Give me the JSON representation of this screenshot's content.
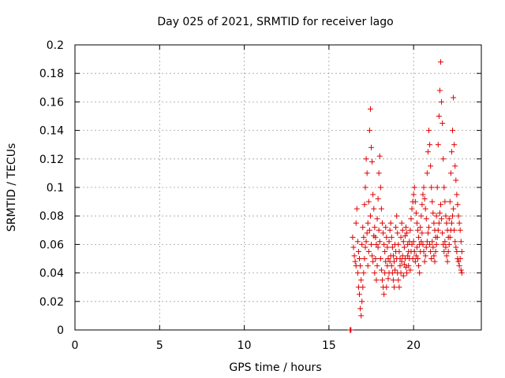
{
  "chart_data": {
    "type": "scatter",
    "title": "Day 025 of 2021, SRMTID for receiver lago",
    "xlabel": "GPS time / hours",
    "ylabel": "SRMTID / TECUs",
    "xlim": [
      0,
      24
    ],
    "ylim": [
      0,
      0.2
    ],
    "xticks": [
      0,
      5,
      10,
      15,
      20
    ],
    "xtick_labels": [
      "0",
      "5",
      "10",
      "15",
      "20"
    ],
    "yticks": [
      0,
      0.02,
      0.04,
      0.06,
      0.08,
      0.1,
      0.12,
      0.14,
      0.16,
      0.18,
      0.2
    ],
    "ytick_labels": [
      "0",
      "0.02",
      "0.04",
      "0.06",
      "0.08",
      "0.1",
      "0.12",
      "0.14",
      "0.16",
      "0.18",
      "0.2"
    ],
    "grid": true,
    "marker": "+",
    "color": "#e00000",
    "series": [
      {
        "name": "SRMTID",
        "points": [
          [
            16.25,
            0.0
          ],
          [
            16.27,
            0.0
          ],
          [
            16.3,
            0.0
          ],
          [
            16.4,
            0.065
          ],
          [
            16.45,
            0.058
          ],
          [
            16.5,
            0.052
          ],
          [
            16.55,
            0.048
          ],
          [
            16.6,
            0.045
          ],
          [
            16.6,
            0.075
          ],
          [
            16.65,
            0.085
          ],
          [
            16.7,
            0.04
          ],
          [
            16.7,
            0.062
          ],
          [
            16.75,
            0.03
          ],
          [
            16.75,
            0.055
          ],
          [
            16.8,
            0.025
          ],
          [
            16.8,
            0.05
          ],
          [
            16.85,
            0.015
          ],
          [
            16.85,
            0.045
          ],
          [
            16.9,
            0.01
          ],
          [
            16.9,
            0.035
          ],
          [
            16.95,
            0.02
          ],
          [
            16.95,
            0.06
          ],
          [
            17.0,
            0.03
          ],
          [
            17.0,
            0.072
          ],
          [
            17.05,
            0.04
          ],
          [
            17.05,
            0.065
          ],
          [
            17.1,
            0.05
          ],
          [
            17.1,
            0.088
          ],
          [
            17.15,
            0.1
          ],
          [
            17.15,
            0.058
          ],
          [
            17.2,
            0.12
          ],
          [
            17.2,
            0.062
          ],
          [
            17.25,
            0.11
          ],
          [
            17.25,
            0.068
          ],
          [
            17.3,
            0.075
          ],
          [
            17.3,
            0.045
          ],
          [
            17.35,
            0.09
          ],
          [
            17.35,
            0.055
          ],
          [
            17.4,
            0.14
          ],
          [
            17.4,
            0.07
          ],
          [
            17.45,
            0.155
          ],
          [
            17.45,
            0.08
          ],
          [
            17.5,
            0.128
          ],
          [
            17.5,
            0.06
          ],
          [
            17.55,
            0.118
          ],
          [
            17.55,
            0.052
          ],
          [
            17.6,
            0.095
          ],
          [
            17.6,
            0.048
          ],
          [
            17.65,
            0.085
          ],
          [
            17.65,
            0.066
          ],
          [
            17.7,
            0.072
          ],
          [
            17.7,
            0.04
          ],
          [
            17.75,
            0.065
          ],
          [
            17.75,
            0.05
          ],
          [
            17.8,
            0.06
          ],
          [
            17.8,
            0.035
          ],
          [
            17.85,
            0.078
          ],
          [
            17.85,
            0.045
          ],
          [
            17.9,
            0.092
          ],
          [
            17.9,
            0.058
          ],
          [
            17.95,
            0.11
          ],
          [
            17.95,
            0.07
          ],
          [
            18.0,
            0.122
          ],
          [
            18.0,
            0.062
          ],
          [
            18.05,
            0.1
          ],
          [
            18.05,
            0.05
          ],
          [
            18.1,
            0.085
          ],
          [
            18.1,
            0.042
          ],
          [
            18.15,
            0.075
          ],
          [
            18.15,
            0.035
          ],
          [
            18.2,
            0.068
          ],
          [
            18.2,
            0.03
          ],
          [
            18.25,
            0.06
          ],
          [
            18.25,
            0.025
          ],
          [
            18.3,
            0.055
          ],
          [
            18.3,
            0.04
          ],
          [
            18.35,
            0.072
          ],
          [
            18.35,
            0.048
          ],
          [
            18.4,
            0.065
          ],
          [
            18.4,
            0.03
          ],
          [
            18.45,
            0.058
          ],
          [
            18.45,
            0.045
          ],
          [
            18.5,
            0.05
          ],
          [
            18.5,
            0.036
          ],
          [
            18.55,
            0.062
          ],
          [
            18.55,
            0.04
          ],
          [
            18.6,
            0.07
          ],
          [
            18.6,
            0.048
          ],
          [
            18.65,
            0.075
          ],
          [
            18.65,
            0.052
          ],
          [
            18.7,
            0.065
          ],
          [
            18.7,
            0.045
          ],
          [
            18.75,
            0.058
          ],
          [
            18.75,
            0.04
          ],
          [
            18.8,
            0.052
          ],
          [
            18.8,
            0.035
          ],
          [
            18.85,
            0.048
          ],
          [
            18.85,
            0.03
          ],
          [
            18.9,
            0.06
          ],
          [
            18.9,
            0.042
          ],
          [
            18.95,
            0.072
          ],
          [
            18.95,
            0.055
          ],
          [
            19.0,
            0.08
          ],
          [
            19.0,
            0.05
          ],
          [
            19.05,
            0.068
          ],
          [
            19.05,
            0.04
          ],
          [
            19.1,
            0.06
          ],
          [
            19.1,
            0.035
          ],
          [
            19.15,
            0.055
          ],
          [
            19.15,
            0.03
          ],
          [
            19.2,
            0.05
          ],
          [
            19.2,
            0.045
          ],
          [
            19.25,
            0.065
          ],
          [
            19.25,
            0.04
          ],
          [
            19.3,
            0.075
          ],
          [
            19.3,
            0.048
          ],
          [
            19.35,
            0.07
          ],
          [
            19.35,
            0.052
          ],
          [
            19.4,
            0.062
          ],
          [
            19.4,
            0.038
          ],
          [
            19.45,
            0.058
          ],
          [
            19.45,
            0.046
          ],
          [
            19.5,
            0.066
          ],
          [
            19.5,
            0.05
          ],
          [
            19.55,
            0.072
          ],
          [
            19.55,
            0.044
          ],
          [
            19.6,
            0.068
          ],
          [
            19.6,
            0.04
          ],
          [
            19.65,
            0.06
          ],
          [
            19.65,
            0.052
          ],
          [
            19.7,
            0.055
          ],
          [
            19.7,
            0.045
          ],
          [
            19.75,
            0.062
          ],
          [
            19.75,
            0.05
          ],
          [
            19.8,
            0.07
          ],
          [
            19.8,
            0.042
          ],
          [
            19.85,
            0.078
          ],
          [
            19.85,
            0.055
          ],
          [
            19.9,
            0.085
          ],
          [
            19.9,
            0.06
          ],
          [
            19.95,
            0.09
          ],
          [
            19.95,
            0.05
          ],
          [
            20.0,
            0.095
          ],
          [
            20.0,
            0.062
          ],
          [
            20.05,
            0.1
          ],
          [
            20.05,
            0.055
          ],
          [
            20.1,
            0.09
          ],
          [
            20.1,
            0.048
          ],
          [
            20.15,
            0.082
          ],
          [
            20.15,
            0.052
          ],
          [
            20.2,
            0.075
          ],
          [
            20.2,
            0.058
          ],
          [
            20.25,
            0.07
          ],
          [
            20.25,
            0.05
          ],
          [
            20.3,
            0.065
          ],
          [
            20.3,
            0.045
          ],
          [
            20.35,
            0.06
          ],
          [
            20.35,
            0.04
          ],
          [
            20.4,
            0.072
          ],
          [
            20.4,
            0.055
          ],
          [
            20.45,
            0.08
          ],
          [
            20.45,
            0.062
          ],
          [
            20.5,
            0.088
          ],
          [
            20.5,
            0.068
          ],
          [
            20.55,
            0.095
          ],
          [
            20.55,
            0.06
          ],
          [
            20.6,
            0.1
          ],
          [
            20.6,
            0.055
          ],
          [
            20.65,
            0.092
          ],
          [
            20.65,
            0.048
          ],
          [
            20.7,
            0.085
          ],
          [
            20.7,
            0.052
          ],
          [
            20.75,
            0.078
          ],
          [
            20.75,
            0.058
          ],
          [
            20.8,
            0.11
          ],
          [
            20.8,
            0.062
          ],
          [
            20.85,
            0.125
          ],
          [
            20.85,
            0.068
          ],
          [
            20.9,
            0.14
          ],
          [
            20.9,
            0.072
          ],
          [
            20.95,
            0.13
          ],
          [
            20.95,
            0.06
          ],
          [
            21.0,
            0.115
          ],
          [
            21.0,
            0.055
          ],
          [
            21.05,
            0.1
          ],
          [
            21.05,
            0.05
          ],
          [
            21.1,
            0.09
          ],
          [
            21.1,
            0.062
          ],
          [
            21.15,
            0.082
          ],
          [
            21.15,
            0.058
          ],
          [
            21.2,
            0.075
          ],
          [
            21.2,
            0.052
          ],
          [
            21.25,
            0.07
          ],
          [
            21.25,
            0.048
          ],
          [
            21.3,
            0.065
          ],
          [
            21.3,
            0.055
          ],
          [
            21.35,
            0.08
          ],
          [
            21.35,
            0.06
          ],
          [
            21.4,
            0.1
          ],
          [
            21.4,
            0.065
          ],
          [
            21.45,
            0.13
          ],
          [
            21.45,
            0.07
          ],
          [
            21.5,
            0.15
          ],
          [
            21.5,
            0.075
          ],
          [
            21.55,
            0.168
          ],
          [
            21.55,
            0.082
          ],
          [
            21.6,
            0.188
          ],
          [
            21.6,
            0.088
          ],
          [
            21.65,
            0.16
          ],
          [
            21.65,
            0.078
          ],
          [
            21.7,
            0.145
          ],
          [
            21.7,
            0.068
          ],
          [
            21.75,
            0.12
          ],
          [
            21.75,
            0.06
          ],
          [
            21.8,
            0.1
          ],
          [
            21.8,
            0.055
          ],
          [
            21.85,
            0.09
          ],
          [
            21.85,
            0.062
          ],
          [
            21.9,
            0.08
          ],
          [
            21.9,
            0.058
          ],
          [
            21.95,
            0.075
          ],
          [
            21.95,
            0.052
          ],
          [
            22.0,
            0.07
          ],
          [
            22.0,
            0.048
          ],
          [
            22.05,
            0.065
          ],
          [
            22.05,
            0.055
          ],
          [
            22.1,
            0.078
          ],
          [
            22.1,
            0.06
          ],
          [
            22.15,
            0.09
          ],
          [
            22.15,
            0.065
          ],
          [
            22.2,
            0.11
          ],
          [
            22.2,
            0.07
          ],
          [
            22.25,
            0.125
          ],
          [
            22.25,
            0.075
          ],
          [
            22.3,
            0.14
          ],
          [
            22.3,
            0.08
          ],
          [
            22.35,
            0.163
          ],
          [
            22.35,
            0.085
          ],
          [
            22.4,
            0.13
          ],
          [
            22.4,
            0.07
          ],
          [
            22.45,
            0.115
          ],
          [
            22.45,
            0.062
          ],
          [
            22.5,
            0.105
          ],
          [
            22.5,
            0.058
          ],
          [
            22.55,
            0.095
          ],
          [
            22.55,
            0.055
          ],
          [
            22.6,
            0.088
          ],
          [
            22.6,
            0.05
          ],
          [
            22.65,
            0.08
          ],
          [
            22.65,
            0.048
          ],
          [
            22.7,
            0.075
          ],
          [
            22.7,
            0.045
          ],
          [
            22.75,
            0.07
          ],
          [
            22.75,
            0.05
          ],
          [
            22.8,
            0.062
          ],
          [
            22.8,
            0.042
          ],
          [
            22.85,
            0.055
          ],
          [
            22.85,
            0.04
          ]
        ]
      }
    ]
  }
}
